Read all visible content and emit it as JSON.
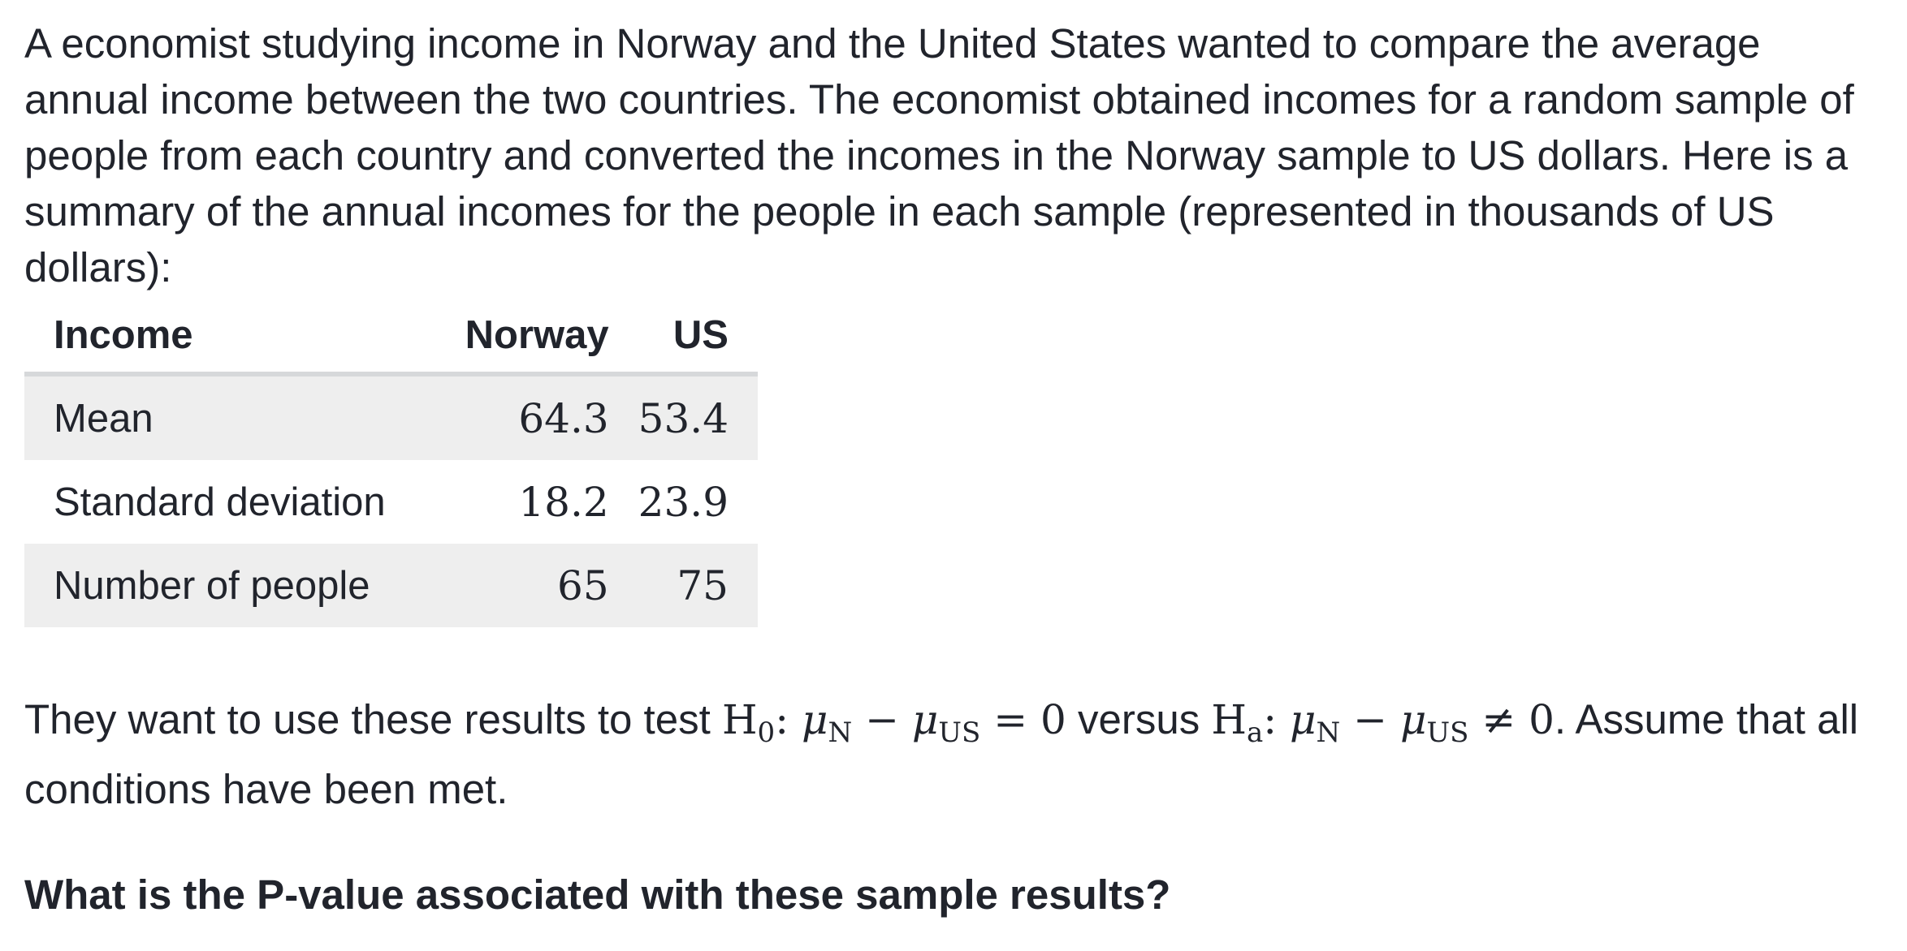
{
  "intro_text": "A economist studying income in Norway and the United States wanted to compare the average annual income between the two countries. The economist obtained incomes for a random sample of people from each country and converted the incomes in the Norway sample to US dollars. Here is a summary of the annual incomes for the people in each sample (represented in thousands of US dollars):",
  "table": {
    "headers": [
      "Income",
      "Norway",
      "US"
    ],
    "rows": [
      {
        "label": "Mean",
        "norway": "64.3",
        "us": "53.4"
      },
      {
        "label": "Standard deviation",
        "norway": "18.2",
        "us": "23.9"
      },
      {
        "label": "Number of people",
        "norway": "65",
        "us": "75"
      }
    ]
  },
  "hypothesis": {
    "lead": "They want to use these results to test ",
    "h0": "H",
    "h0_sub": "0",
    "colon": ": ",
    "mu": "μ",
    "sub_n": "N",
    "minus": " − ",
    "sub_us": "US",
    "eq": " = 0",
    "versus": " versus ",
    "ha": "H",
    "ha_sub": "a",
    "neq": " ≠ 0",
    "tail": ". Assume that all conditions have been met."
  },
  "question": "What is the P-value associated with these sample results?"
}
